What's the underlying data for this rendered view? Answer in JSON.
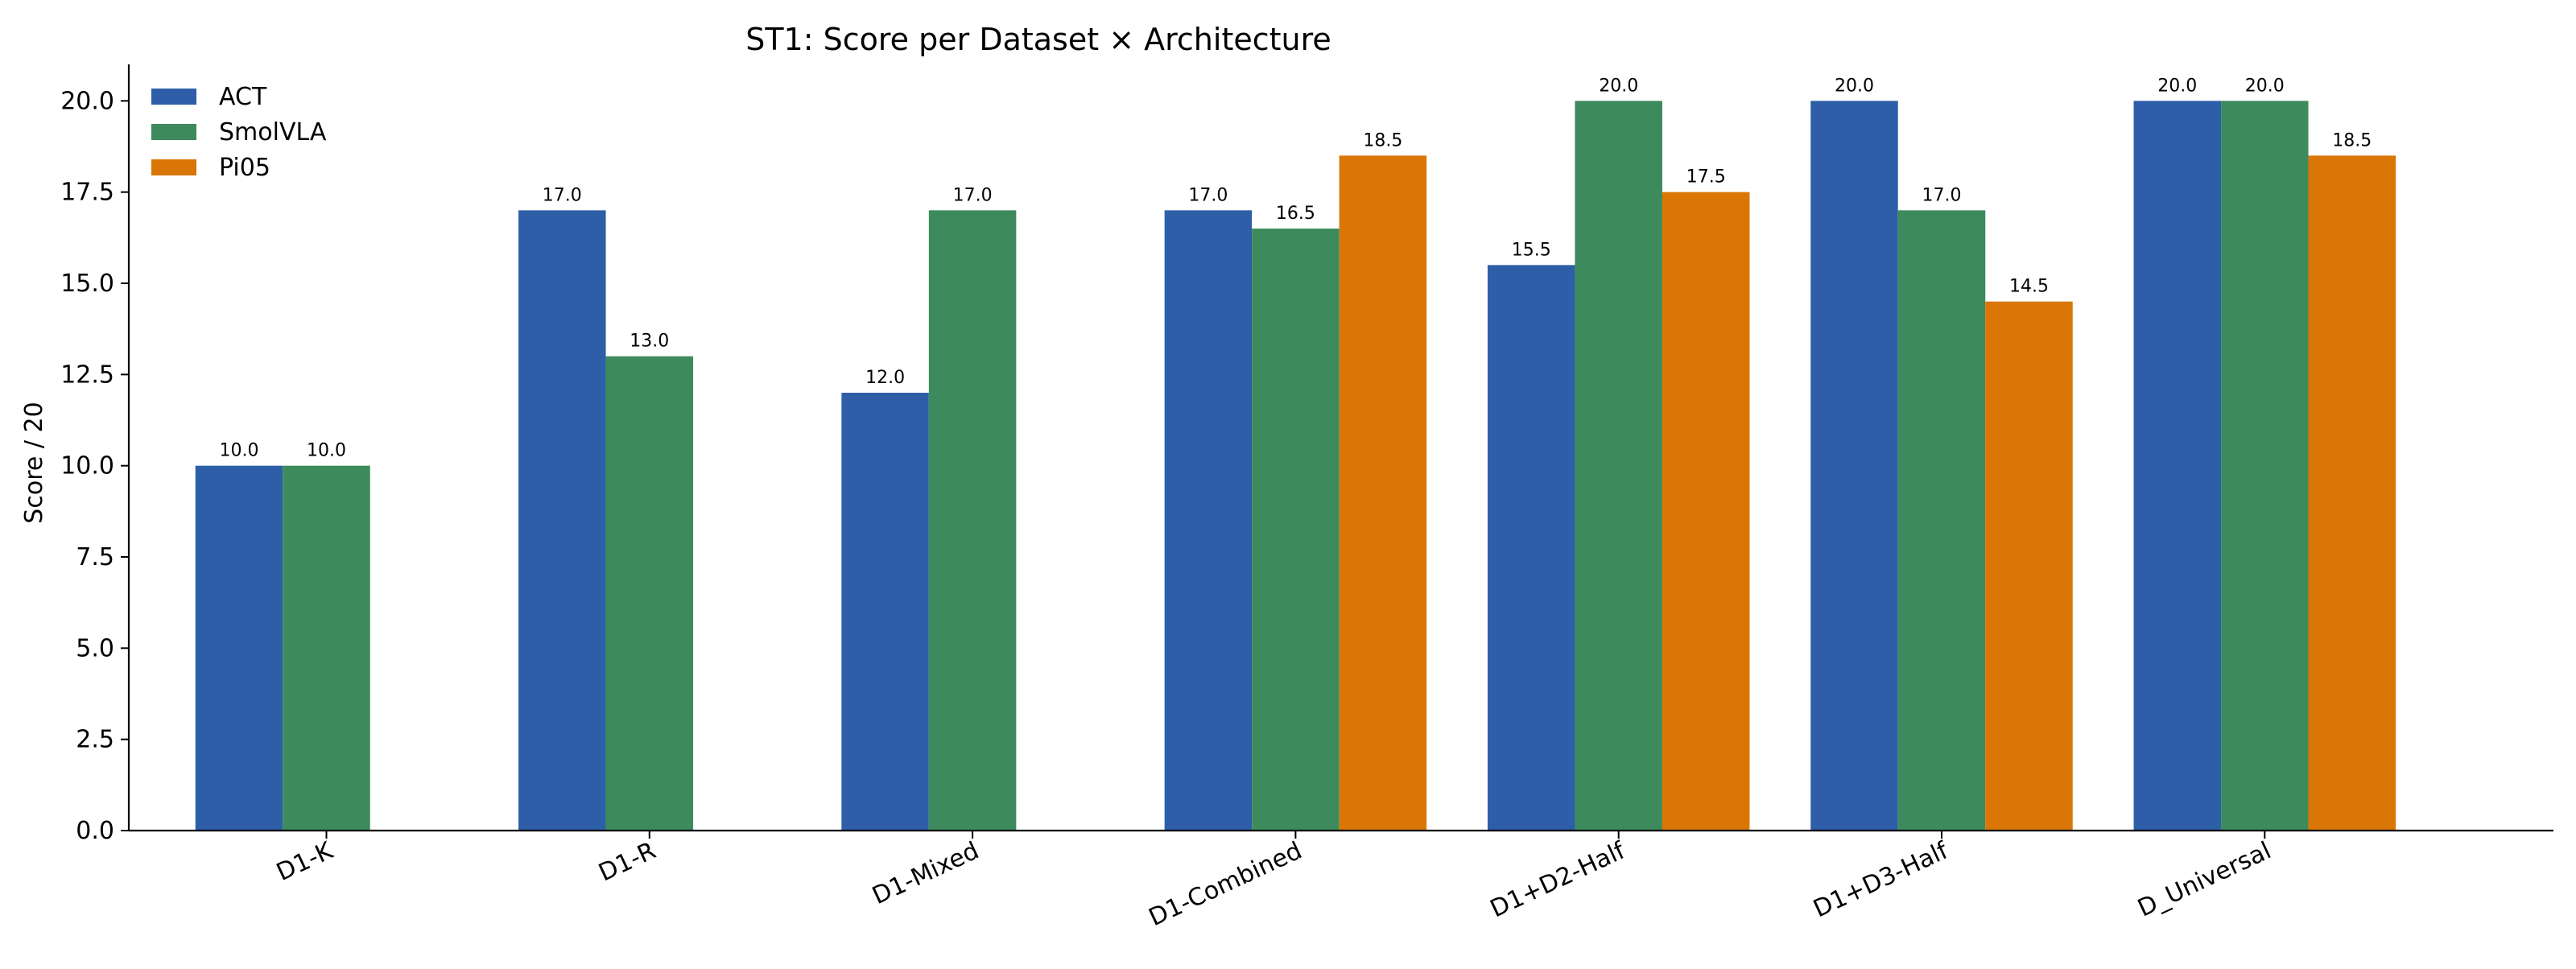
{
  "chart_data": {
    "type": "bar",
    "title": "ST1: Score per Dataset × Architecture",
    "xlabel": "",
    "ylabel": "Score / 20",
    "ylim": [
      0,
      21
    ],
    "yticks": [
      "0.0",
      "2.5",
      "5.0",
      "7.5",
      "10.0",
      "12.5",
      "15.0",
      "17.5",
      "20.0"
    ],
    "grid": false,
    "legend_position": "top-left",
    "categories": [
      "D1-K",
      "D1-R",
      "D1-Mixed",
      "D1-Combined",
      "D1+D2-Half",
      "D1+D3-Half",
      "D_Universal"
    ],
    "series": [
      {
        "name": "ACT",
        "color": "#2e5ea8",
        "values": [
          10.0,
          17.0,
          12.0,
          17.0,
          15.5,
          20.0,
          20.0
        ],
        "labels": [
          "10.0",
          "17.0",
          "12.0",
          "17.0",
          "15.5",
          "20.0",
          "20.0"
        ]
      },
      {
        "name": "SmolVLA",
        "color": "#3d8b5c",
        "values": [
          10.0,
          13.0,
          17.0,
          16.5,
          20.0,
          17.0,
          20.0
        ],
        "labels": [
          "10.0",
          "13.0",
          "17.0",
          "16.5",
          "20.0",
          "17.0",
          "20.0"
        ]
      },
      {
        "name": "Pi05",
        "color": "#d97606",
        "values": [
          null,
          null,
          null,
          18.5,
          17.5,
          14.5,
          18.5
        ],
        "labels": [
          "",
          "",
          "",
          "18.5",
          "17.5",
          "14.5",
          "18.5"
        ]
      }
    ]
  }
}
